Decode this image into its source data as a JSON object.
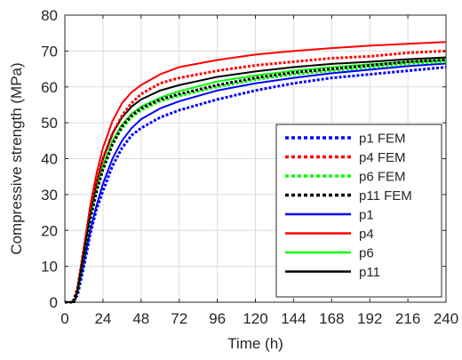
{
  "chart_data": {
    "type": "line",
    "xlabel": "Time (h)",
    "ylabel": "Compressive strength (MPa)",
    "xlim": [
      0,
      240
    ],
    "ylim": [
      0,
      80
    ],
    "xticks": [
      0,
      24,
      48,
      72,
      96,
      120,
      144,
      168,
      192,
      216,
      240
    ],
    "yticks": [
      0,
      10,
      20,
      30,
      40,
      50,
      60,
      70,
      80
    ],
    "grid": true,
    "legend_position": "lower-right",
    "series": [
      {
        "name": "p1 FEM",
        "style": "dotted",
        "color": "#0000ff",
        "x": [
          0,
          5,
          8,
          12,
          16,
          20,
          24,
          30,
          36,
          42,
          48,
          60,
          72,
          96,
          120,
          144,
          168,
          192,
          216,
          240
        ],
        "y": [
          0,
          0,
          2,
          10,
          19,
          26,
          31,
          38,
          43,
          46.5,
          48.5,
          51.5,
          53.5,
          56.5,
          59,
          61,
          62.5,
          63.5,
          64.5,
          65.5
        ]
      },
      {
        "name": "p4 FEM",
        "style": "dotted",
        "color": "#ff0000",
        "x": [
          0,
          5,
          8,
          12,
          16,
          20,
          24,
          30,
          36,
          42,
          48,
          60,
          72,
          96,
          120,
          144,
          168,
          192,
          216,
          240
        ],
        "y": [
          0,
          0,
          4,
          15,
          26,
          34,
          40,
          47,
          52,
          55.5,
          58,
          61,
          62.5,
          64.5,
          66,
          67,
          68,
          68.5,
          69.5,
          70
        ]
      },
      {
        "name": "p6 FEM",
        "style": "dotted",
        "color": "#00ff00",
        "x": [
          0,
          5,
          8,
          12,
          16,
          20,
          24,
          30,
          36,
          42,
          48,
          60,
          72,
          96,
          120,
          144,
          168,
          192,
          216,
          240
        ],
        "y": [
          0,
          0,
          3,
          13,
          23,
          31,
          37,
          44,
          48.5,
          51.5,
          53.5,
          56,
          57.5,
          60,
          62,
          63.5,
          64.5,
          65.5,
          66.5,
          67
        ]
      },
      {
        "name": "p11 FEM",
        "style": "dotted",
        "color": "#000000",
        "x": [
          0,
          5,
          8,
          12,
          16,
          20,
          24,
          30,
          36,
          42,
          48,
          60,
          72,
          96,
          120,
          144,
          168,
          192,
          216,
          240
        ],
        "y": [
          0,
          0,
          3,
          13,
          23,
          31,
          37,
          44,
          49,
          52,
          54,
          56.5,
          58,
          60.5,
          62.5,
          64,
          65,
          66,
          67,
          67.5
        ]
      },
      {
        "name": "p1",
        "style": "solid",
        "color": "#0000ff",
        "x": [
          0,
          6,
          8,
          12,
          16,
          20,
          24,
          30,
          36,
          42,
          48,
          60,
          72,
          96,
          120,
          144,
          168,
          192,
          216,
          240
        ],
        "y": [
          0,
          0,
          3,
          11,
          20,
          27,
          33,
          40,
          45,
          48.5,
          51,
          54,
          56,
          59,
          61,
          62.5,
          63.8,
          64.8,
          65.8,
          66.5
        ]
      },
      {
        "name": "p4",
        "style": "solid",
        "color": "#ff0000",
        "x": [
          0,
          6,
          8,
          12,
          16,
          20,
          24,
          30,
          36,
          42,
          48,
          60,
          72,
          96,
          120,
          144,
          168,
          192,
          216,
          240
        ],
        "y": [
          0,
          0,
          4,
          15,
          27,
          36,
          43,
          50.5,
          55.5,
          58.5,
          60.5,
          63.5,
          65.5,
          67.5,
          69,
          70,
          70.8,
          71.5,
          72,
          72.5
        ]
      },
      {
        "name": "p6",
        "style": "solid",
        "color": "#00ff00",
        "x": [
          0,
          6,
          8,
          12,
          16,
          20,
          24,
          30,
          36,
          42,
          48,
          60,
          72,
          96,
          120,
          144,
          168,
          192,
          216,
          240
        ],
        "y": [
          0,
          0,
          3,
          13,
          24,
          32,
          38,
          45,
          49.5,
          52.5,
          54.5,
          57,
          58.8,
          61.5,
          63.2,
          64.5,
          65.5,
          66.3,
          67,
          67.5
        ]
      },
      {
        "name": "p11",
        "style": "solid",
        "color": "#000000",
        "x": [
          0,
          6,
          8,
          12,
          16,
          20,
          24,
          30,
          36,
          42,
          48,
          60,
          72,
          96,
          120,
          144,
          168,
          192,
          216,
          240
        ],
        "y": [
          0,
          0,
          3.5,
          14,
          25,
          33.5,
          40,
          47,
          51.5,
          54.5,
          56.5,
          59,
          60.5,
          62.8,
          64.3,
          65.5,
          66.4,
          67,
          67.7,
          68.2
        ]
      }
    ]
  }
}
